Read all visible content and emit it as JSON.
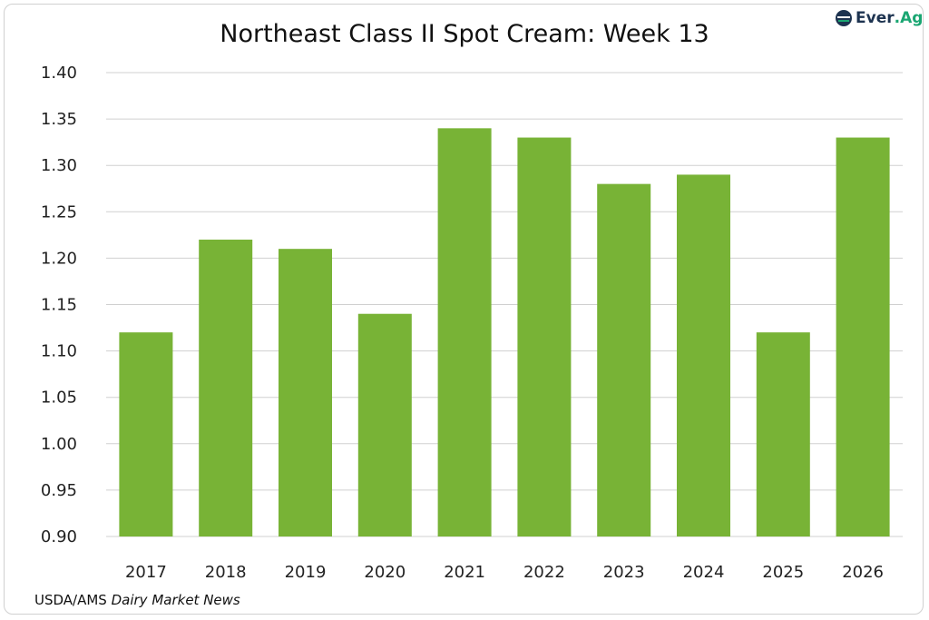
{
  "chart_data": {
    "type": "bar",
    "title": "Northeast Class II Spot Cream: Week 13",
    "categories": [
      "2017",
      "2018",
      "2019",
      "2020",
      "2021",
      "2022",
      "2023",
      "2024",
      "2025",
      "2026"
    ],
    "values": [
      1.12,
      1.22,
      1.21,
      1.14,
      1.34,
      1.33,
      1.28,
      1.29,
      1.12,
      1.33
    ],
    "ylim": [
      0.9,
      1.4
    ],
    "yticks": [
      "0.90",
      "0.95",
      "1.00",
      "1.05",
      "1.10",
      "1.15",
      "1.20",
      "1.25",
      "1.30",
      "1.35",
      "1.40"
    ],
    "xlabel": "",
    "ylabel": "",
    "grid": true,
    "bar_color": "#78b336"
  },
  "logo": {
    "part1": "Ever",
    "part2": ".Ag"
  },
  "source": {
    "prefix": "USDA/AMS ",
    "italic": "Dairy Market News"
  }
}
